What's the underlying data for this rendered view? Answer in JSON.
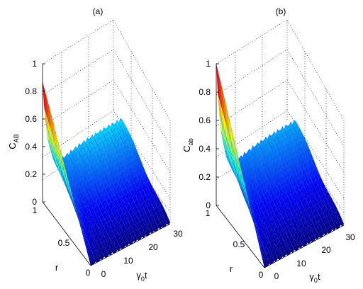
{
  "chart_data": [
    {
      "type": "surface",
      "title": "(a)",
      "zlabel": "C",
      "zlabel_sub": "AB",
      "xlabel": "r",
      "ylabel": "γ",
      "ylabel_sub": "0",
      "ylabel_tail": "t",
      "x_range": [
        0,
        1
      ],
      "y_range": [
        0,
        30
      ],
      "z_range": [
        0,
        1
      ],
      "x_ticks": [
        "0",
        "0.5",
        "1"
      ],
      "y_ticks": [
        "0",
        "10",
        "20",
        "30"
      ],
      "z_ticks": [
        "0",
        "0.2",
        "0.4",
        "0.6",
        "0.8",
        "1"
      ],
      "z_max": 0.87,
      "plateau": 0.3,
      "colormap": "jet"
    },
    {
      "type": "surface",
      "title": "(b)",
      "zlabel": "C",
      "zlabel_sub": "ab",
      "xlabel": "r",
      "ylabel": "γ",
      "ylabel_sub": "0",
      "ylabel_tail": "t",
      "x_range": [
        0,
        1
      ],
      "y_range": [
        0,
        30
      ],
      "z_range": [
        0,
        1
      ],
      "x_ticks": [
        "0",
        "0.5",
        "1"
      ],
      "y_ticks": [
        "0",
        "10",
        "20",
        "30"
      ],
      "z_ticks": [
        "0",
        "0.2",
        "0.4",
        "0.6",
        "0.8",
        "1"
      ],
      "z_max": 1.0,
      "plateau": 0.3,
      "colormap": "jet"
    }
  ]
}
